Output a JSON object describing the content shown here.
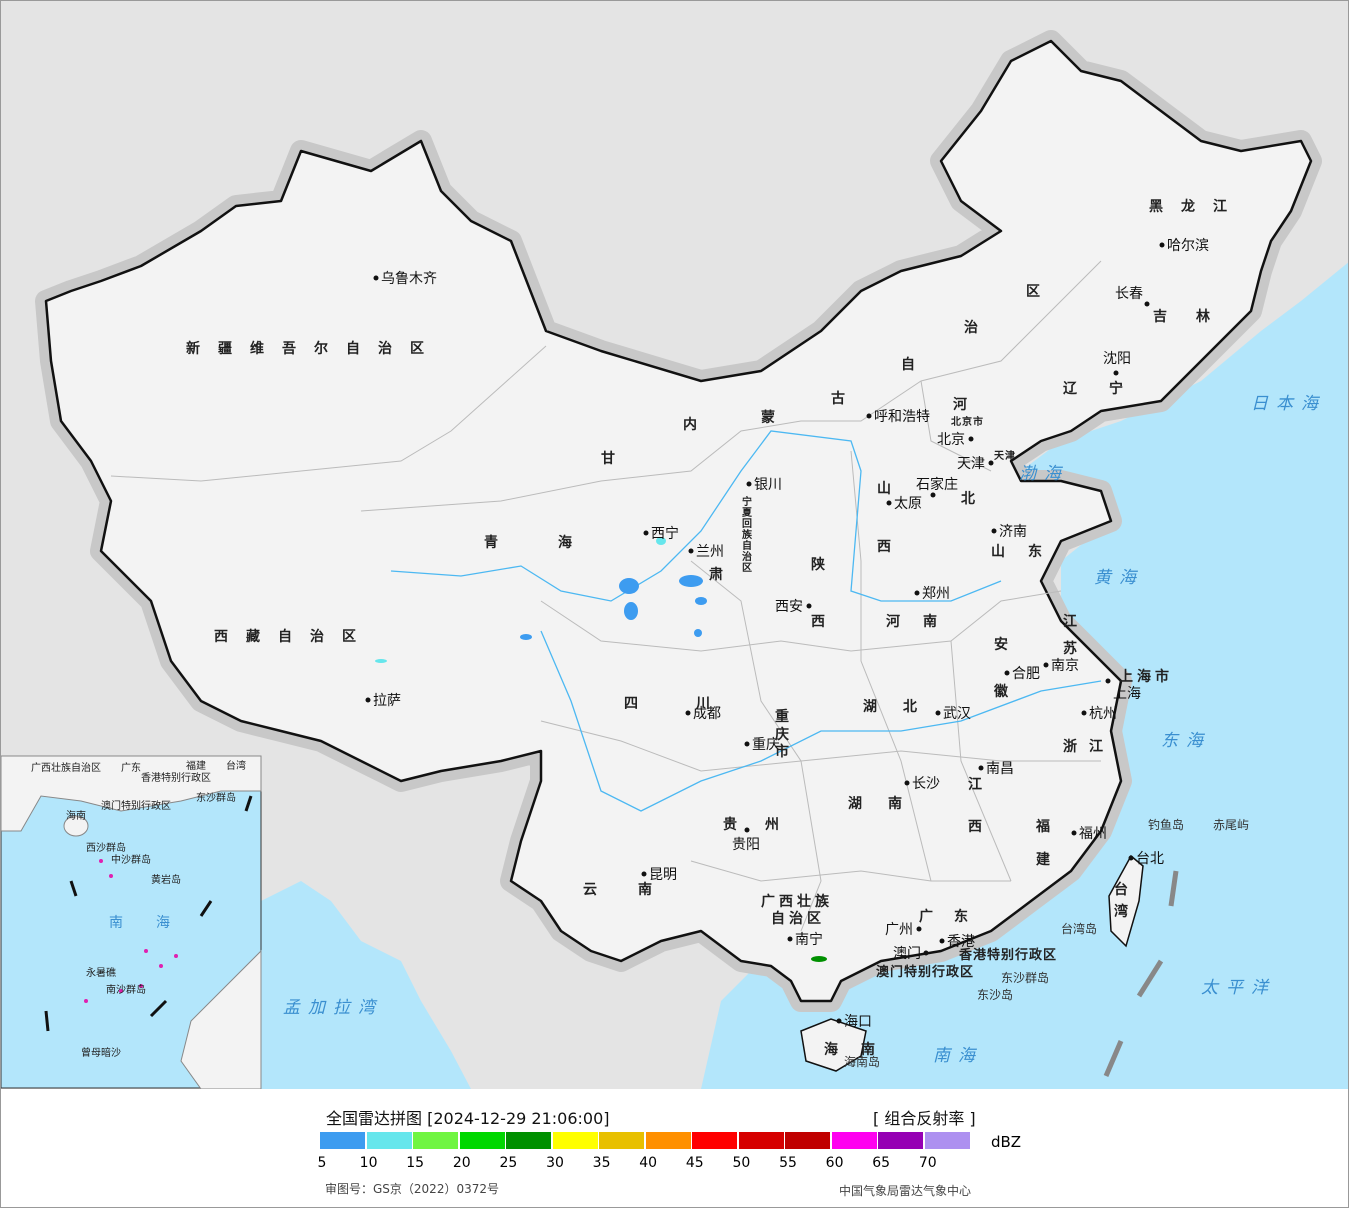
{
  "colors": {
    "sea": "#b3e6fb",
    "land": "#f3f3f3",
    "outside": "#e4e4e4",
    "border": "#111111"
  },
  "legend": {
    "title": "全国雷达拼图 [2024-12-29 21:06:00]",
    "product": "[ 组合反射率 ]",
    "unit": "dBZ",
    "ticks": [
      "5",
      "10",
      "15",
      "20",
      "25",
      "30",
      "35",
      "40",
      "45",
      "50",
      "55",
      "60",
      "65",
      "70"
    ],
    "colors": [
      "#3d9cf0",
      "#66e6ec",
      "#70f542",
      "#00d800",
      "#009000",
      "#ffff00",
      "#e8c000",
      "#ff9000",
      "#ff0000",
      "#d60000",
      "#c00000",
      "#ff00f0",
      "#9600b4",
      "#ad90f0"
    ],
    "approval": "审图号：GS京（2022）0372号",
    "org": "中国气象局雷达气象中心"
  },
  "map": {
    "cities": [
      "乌鲁木齐",
      "拉萨",
      "西宁",
      "兰州",
      "银川",
      "呼和浩特",
      "北京",
      "天津",
      "石家庄",
      "太原",
      "济南",
      "郑州",
      "西安",
      "成都",
      "重庆",
      "武汉",
      "合肥",
      "南京",
      "上海",
      "杭州",
      "南昌",
      "长沙",
      "贵阳",
      "昆明",
      "南宁",
      "广州",
      "香港",
      "澳门",
      "福州",
      "台北",
      "海口",
      "沈阳",
      "长春",
      "哈尔滨"
    ],
    "provinces": [
      "新疆维吾尔自治区",
      "西藏自治区",
      "青",
      "海",
      "甘",
      "肃",
      "内",
      "蒙",
      "古",
      "自",
      "治",
      "区",
      "黑龙江",
      "吉",
      "林",
      "辽",
      "宁",
      "河",
      "北",
      "山",
      "西",
      "山",
      "东",
      "陕",
      "西",
      "河",
      "南",
      "江",
      "苏",
      "安",
      "徽",
      "湖",
      "北",
      "四",
      "川",
      "重",
      "庆",
      "市",
      "湖",
      "南",
      "江",
      "西",
      "浙",
      "江",
      "福",
      "建",
      "贵",
      "州",
      "云",
      "南",
      "广西壮族",
      "自治区",
      "广",
      "东",
      "海",
      "南",
      "台",
      "湾",
      "上海市",
      "宁夏回族自治区",
      "天津",
      "北京市",
      "香港特别行政区",
      "澳门特别行政区"
    ],
    "seas": [
      "渤海",
      "黄海",
      "东海",
      "南海",
      "太平洋",
      "日本海",
      "孟加拉湾"
    ],
    "islands": [
      "钓鱼岛",
      "赤尾屿",
      "台湾岛",
      "东沙群岛",
      "东沙岛",
      "海南岛"
    ],
    "inset": [
      "广西壮族自治区",
      "广东",
      "福建",
      "台湾",
      "海南",
      "香港特别行政区",
      "澳门特别行政区",
      "东沙群岛",
      "西沙群岛",
      "中沙群岛",
      "黄岩岛",
      "南",
      "海",
      "南沙群岛",
      "永暑礁",
      "曾母暗沙"
    ]
  }
}
